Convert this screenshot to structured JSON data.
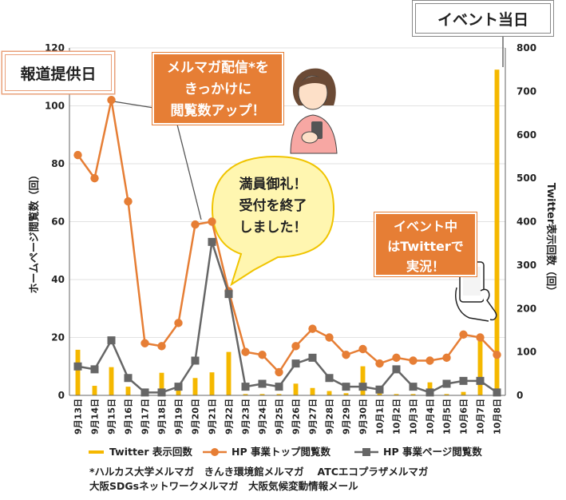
{
  "chart_data": {
    "type": "bar+line",
    "categories": [
      "9月13日",
      "9月14日",
      "9月15日",
      "9月16日",
      "9月17日",
      "9月18日",
      "9月19日",
      "9月20日",
      "9月21日",
      "9月22日",
      "9月23日",
      "9月24日",
      "9月25日",
      "9月26日",
      "9月27日",
      "9月28日",
      "9月29日",
      "9月30日",
      "10月1日",
      "10月2日",
      "10月3日",
      "10月4日",
      "10月5日",
      "10月6日",
      "10月7日",
      "10月8日"
    ],
    "y_left": {
      "label": "ホームページ閲覧数（回）",
      "range": [
        0,
        120
      ],
      "ticks": [
        0,
        20,
        40,
        60,
        80,
        100,
        120
      ]
    },
    "y_right": {
      "label": "Twitter表示回数（回）",
      "range": [
        0,
        800
      ],
      "ticks": [
        0,
        100,
        200,
        300,
        400,
        500,
        600,
        700,
        800
      ]
    },
    "series": [
      {
        "name": "Twitter 表示回数",
        "type": "bar",
        "axis": "right",
        "color": "#f5b800",
        "values": [
          105,
          22,
          65,
          20,
          3,
          52,
          15,
          40,
          53,
          100,
          3,
          3,
          3,
          27,
          17,
          10,
          5,
          67,
          5,
          3,
          3,
          30,
          3,
          8,
          125,
          750
        ]
      },
      {
        "name": "HP 事業トップ閲覧数",
        "type": "line",
        "axis": "left",
        "color": "#e67e35",
        "marker": "circle",
        "values": [
          83,
          75,
          102,
          67,
          18,
          17,
          25,
          59,
          60,
          36,
          15,
          14,
          8,
          17,
          23,
          20,
          14,
          16,
          11,
          13,
          12,
          12,
          13,
          21,
          20,
          14
        ]
      },
      {
        "name": "HP 事業ページ閲覧数",
        "type": "line",
        "axis": "left",
        "color": "#666666",
        "marker": "square",
        "values": [
          10,
          9,
          19,
          6,
          1,
          1,
          3,
          12,
          53,
          35,
          3,
          4,
          3,
          11,
          13,
          6,
          3,
          3,
          2,
          9,
          3,
          1,
          4,
          5,
          5,
          1
        ]
      }
    ]
  },
  "annotations": {
    "event_day": "イベント当日",
    "press_day": "報道提供日",
    "mailmag_lines": [
      "メルマガ配信*を",
      "きっかけに",
      "閲覧数アップ！"
    ],
    "full_lines": [
      "満員御礼！",
      "受付を終了",
      "しました！"
    ],
    "live_lines": [
      "イベント中",
      "はTwitterで",
      "実況！"
    ]
  },
  "footnote": {
    "line1": "*ハルカス大学メルマガ　きんき環境館メルマガ　 ATCエコプラザメルマガ",
    "line2": "大阪SDGsネットワークメルマガ　大阪気候変動情報メール"
  },
  "colors": {
    "bar": "#f5b800",
    "line_top": "#e67e35",
    "line_page": "#666666",
    "callout": "#e67e35"
  }
}
